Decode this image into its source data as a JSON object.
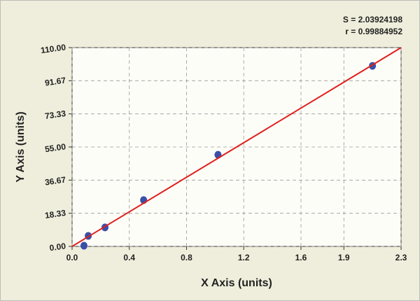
{
  "chart_data": {
    "type": "scatter",
    "annotations": [
      "S = 2.03924198",
      "r = 0.99884952"
    ],
    "x_label": "X Axis (units)",
    "y_label": "Y Axis (units)",
    "xlim": [
      0,
      2.3
    ],
    "ylim": [
      0,
      110
    ],
    "xticks": [
      {
        "value": 0,
        "label": "0.0"
      },
      0.4,
      0.8,
      1.2,
      1.6,
      1.9,
      2.3
    ],
    "yticks": [
      {
        "value": 0,
        "label": "0.00"
      },
      18.33,
      36.67,
      {
        "value": 55,
        "label": "55.00"
      },
      73.33,
      91.67,
      {
        "value": 110,
        "label": "110.00"
      }
    ],
    "grid": true,
    "series": [
      {
        "mode": "markers",
        "color": "#3a4fa8",
        "x": [
          0.083,
          0.113,
          0.23,
          0.5,
          1.02,
          2.1
        ],
        "values": [
          0.4,
          5.8,
          10.5,
          25.6,
          50.7,
          99.9
        ]
      },
      {
        "mode": "line",
        "color": "#e0201c",
        "x": [
          0,
          2.3
        ],
        "values": [
          0,
          110
        ]
      }
    ]
  }
}
